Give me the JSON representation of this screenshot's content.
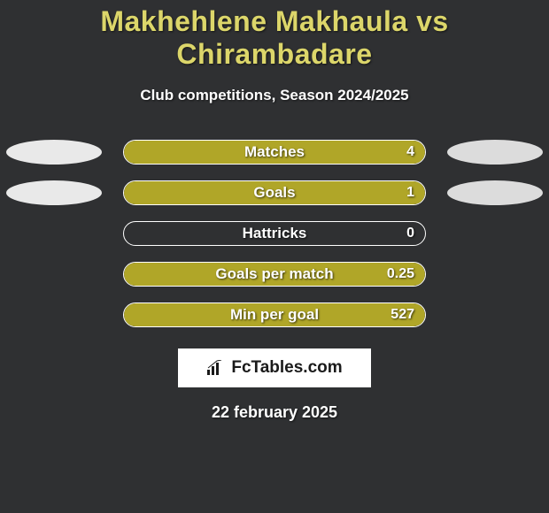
{
  "background_color": "#2f3032",
  "title": {
    "text": "Makhehlene Makhaula vs Chirambadare",
    "color": "#dcd66a",
    "fontsize": 32,
    "fontweight": 900
  },
  "subtitle": {
    "text": "Club competitions, Season 2024/2025",
    "color": "#ffffff",
    "fontsize": 17,
    "fontweight": 700
  },
  "bar_colors": {
    "fill": "#b0a628",
    "track": "#2f3032",
    "border": "#ffffff"
  },
  "ellipse_colors": {
    "left": "#e9e9e9",
    "right": "#dcdcdc"
  },
  "stats": [
    {
      "label": "Matches",
      "value": "4",
      "fill_pct": 100,
      "show_ellipses": true
    },
    {
      "label": "Goals",
      "value": "1",
      "fill_pct": 100,
      "show_ellipses": true
    },
    {
      "label": "Hattricks",
      "value": "0",
      "fill_pct": 0,
      "show_ellipses": false
    },
    {
      "label": "Goals per match",
      "value": "0.25",
      "fill_pct": 100,
      "show_ellipses": false
    },
    {
      "label": "Min per goal",
      "value": "527",
      "fill_pct": 100,
      "show_ellipses": false
    }
  ],
  "brand": {
    "text": "FcTables.com",
    "bg": "#ffffff",
    "fg": "#1a1a1a",
    "fontsize": 19
  },
  "date": {
    "text": "22 february 2025",
    "color": "#ffffff",
    "fontsize": 18,
    "fontweight": 800
  }
}
